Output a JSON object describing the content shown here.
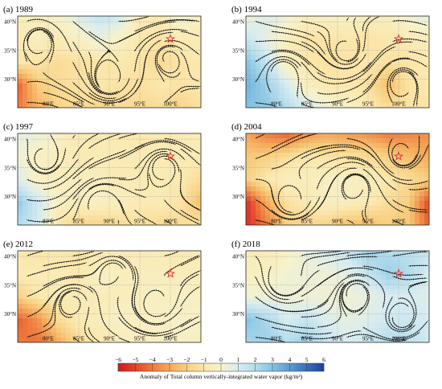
{
  "chart_data": {
    "type": "heatmap",
    "variable_label": "Anomaly of Total column vertically-integrated water vapor (kg/m²)",
    "colorbar": {
      "ticks": [
        -6,
        -5,
        -4,
        -3,
        -2,
        -1,
        0,
        1,
        2,
        3,
        4,
        5,
        6
      ],
      "tick_labels": [
        "−6",
        "−5",
        "−4",
        "−3",
        "−2",
        "−1",
        "0",
        "1",
        "2",
        "3",
        "4",
        "5",
        "6"
      ],
      "colors": [
        "#c91d1d",
        "#e0442a",
        "#ee7a3e",
        "#f5a95a",
        "#f8cf80",
        "#fbe8ae",
        "#f6f2cc",
        "#d8ecf0",
        "#b3dcec",
        "#86c2e2",
        "#5a9bd0",
        "#3a6fb8",
        "#253f96"
      ]
    },
    "x_ticks": [
      "80°E",
      "85°E",
      "90°E",
      "95°E",
      "100°E"
    ],
    "y_ticks": [
      "40°N",
      "35°N",
      "30°N"
    ],
    "lon_range": [
      75,
      105
    ],
    "lat_range": [
      25,
      41
    ],
    "marker": {
      "symbol": "star",
      "lon": 100,
      "lat": 37,
      "color": "#e0302a"
    },
    "panels": [
      {
        "label": "(a) 1989",
        "field": [
          [
            -0.5,
            -0.5,
            -0.3,
            0.8,
            1.5,
            1.2,
            -0.8,
            -1.0,
            0.3,
            -0.5
          ],
          [
            -0.8,
            -0.5,
            -0.7,
            -0.3,
            0.5,
            -0.3,
            -1.0,
            -1.2,
            -0.8,
            -0.8
          ],
          [
            -1.0,
            -1.2,
            -1.5,
            -1.3,
            -1.2,
            -1.0,
            -1.2,
            -1.5,
            -1.2,
            -1.0
          ],
          [
            -4.5,
            -2.0,
            -1.5,
            -1.3,
            -1.0,
            -1.2,
            -1.3,
            -1.0,
            -1.2,
            -1.0
          ],
          [
            -4.0,
            -2.8,
            -1.8,
            -1.5,
            -1.8,
            -1.5,
            -1.6,
            -1.5,
            -1.8,
            -1.3
          ]
        ]
      },
      {
        "label": "(b) 1994",
        "field": [
          [
            0.3,
            0.8,
            0.3,
            -0.5,
            -0.3,
            -0.3,
            -0.5,
            -0.5,
            0.3,
            0.5
          ],
          [
            1.5,
            0.5,
            -0.5,
            -1.2,
            -1.2,
            -1.0,
            -1.2,
            -1.0,
            -0.8,
            -0.5
          ],
          [
            3.0,
            1.5,
            -0.5,
            -1.0,
            -1.3,
            -1.2,
            -1.0,
            -1.3,
            -1.2,
            -0.8
          ],
          [
            3.5,
            2.5,
            1.0,
            -0.5,
            -1.0,
            -1.0,
            -1.3,
            -2.5,
            -1.2,
            -1.0
          ],
          [
            3.0,
            2.8,
            2.0,
            1.0,
            0.3,
            -0.3,
            -0.8,
            -1.5,
            -1.2,
            -1.2
          ]
        ]
      },
      {
        "label": "(c) 1997",
        "field": [
          [
            0.5,
            0.5,
            -0.3,
            -0.8,
            -0.8,
            -0.8,
            -1.0,
            -0.8,
            -0.8,
            -0.6
          ],
          [
            0.3,
            -0.3,
            -0.5,
            -0.8,
            -0.8,
            -0.8,
            -0.8,
            -0.8,
            -0.8,
            -0.8
          ],
          [
            0.8,
            -0.3,
            -0.5,
            -0.5,
            -0.5,
            -0.7,
            -0.8,
            -0.8,
            -0.9,
            -1.5
          ],
          [
            2.8,
            1.2,
            -0.3,
            -0.5,
            -0.3,
            -0.5,
            -0.8,
            -0.8,
            -1.2,
            -2.5
          ],
          [
            2.0,
            1.2,
            -1.2,
            -1.8,
            -1.8,
            -1.6,
            -1.3,
            -1.6,
            -1.5,
            -1.2
          ]
        ]
      },
      {
        "label": "(d) 2004",
        "field": [
          [
            -3.0,
            -4.0,
            -4.5,
            -3.5,
            -3.0,
            -3.3,
            -3.5,
            -4.0,
            -3.8,
            -3.5
          ],
          [
            -2.2,
            -2.0,
            -1.5,
            -1.0,
            -1.2,
            -1.3,
            -1.5,
            -2.0,
            -2.5,
            -3.0
          ],
          [
            -2.0,
            -1.0,
            -0.5,
            -0.5,
            -0.3,
            -0.3,
            -0.5,
            -1.0,
            -1.5,
            -2.0
          ],
          [
            -5.5,
            -3.0,
            -1.3,
            -0.8,
            -0.5,
            -0.5,
            -0.8,
            -1.5,
            -2.0,
            -5.0
          ],
          [
            -5.5,
            -4.0,
            -2.0,
            -1.8,
            -1.8,
            -2.5,
            -2.5,
            -2.0,
            -2.2,
            -4.5
          ]
        ]
      },
      {
        "label": "(e) 2012",
        "field": [
          [
            -1.0,
            -1.2,
            -1.0,
            -1.2,
            -1.0,
            -0.8,
            -0.8,
            -0.7,
            -0.9,
            -0.6
          ],
          [
            -0.8,
            -0.8,
            -0.8,
            -1.0,
            -0.3,
            -0.5,
            -0.5,
            -0.5,
            -0.6,
            -0.5
          ],
          [
            -2.0,
            -1.0,
            -0.8,
            -0.8,
            -0.6,
            -0.5,
            -0.5,
            -0.4,
            -0.3,
            -0.3
          ],
          [
            -4.5,
            -3.5,
            -1.5,
            -0.8,
            -0.5,
            -0.3,
            -0.3,
            -0.3,
            -0.2,
            -0.2
          ],
          [
            -4.0,
            -4.2,
            -3.0,
            -1.5,
            -1.0,
            -0.6,
            -0.5,
            -0.3,
            -0.3,
            -0.3
          ]
        ]
      },
      {
        "label": "(f) 2018",
        "field": [
          [
            -0.8,
            -0.8,
            -0.3,
            0.5,
            1.0,
            1.5,
            2.5,
            2.0,
            1.8,
            1.5
          ],
          [
            -0.5,
            -0.3,
            0.2,
            0.3,
            0.2,
            0.6,
            1.5,
            2.5,
            2.0,
            1.0
          ],
          [
            0.2,
            0.3,
            0.3,
            0.2,
            0.3,
            0.3,
            0.5,
            1.0,
            1.0,
            0.8
          ],
          [
            3.0,
            2.2,
            1.0,
            1.5,
            0.8,
            0.5,
            0.8,
            1.2,
            1.3,
            1.0
          ],
          [
            2.2,
            2.5,
            2.0,
            2.5,
            1.5,
            1.0,
            1.5,
            2.0,
            1.8,
            1.2
          ]
        ]
      }
    ]
  }
}
